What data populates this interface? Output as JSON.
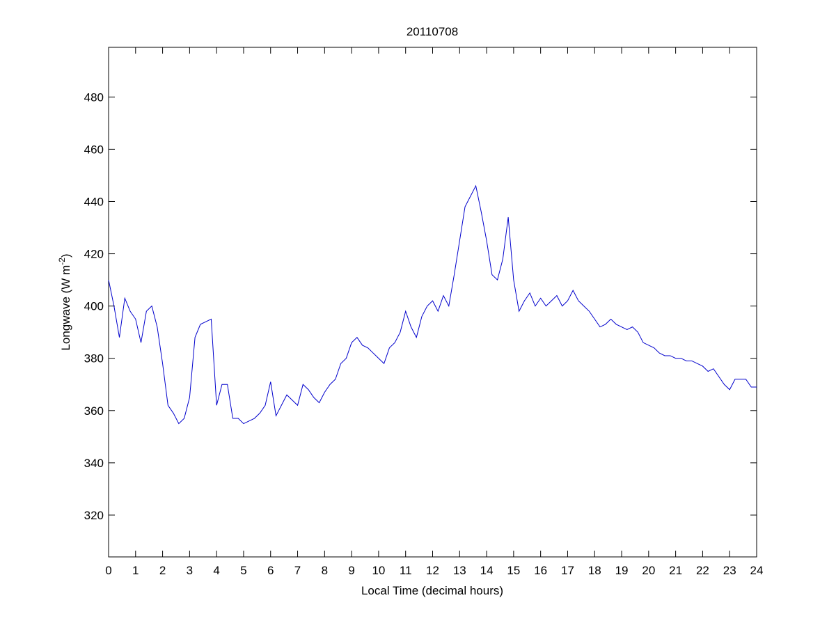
{
  "chart_data": {
    "type": "line",
    "title": "20110708",
    "xlabel": "Local Time (decimal hours)",
    "ylabel": "Longwave (W m",
    "ylabel_superscript": "-2",
    "ylabel_end": ")",
    "x": [
      0,
      0.2,
      0.4,
      0.6,
      0.8,
      1,
      1.2,
      1.4,
      1.6,
      1.8,
      2,
      2.2,
      2.4,
      2.6,
      2.8,
      3,
      3.2,
      3.4,
      3.6,
      3.8,
      4,
      4.2,
      4.4,
      4.6,
      4.8,
      5,
      5.2,
      5.4,
      5.6,
      5.8,
      6,
      6.2,
      6.4,
      6.6,
      6.8,
      7,
      7.2,
      7.4,
      7.6,
      7.8,
      8,
      8.2,
      8.4,
      8.6,
      8.8,
      9,
      9.2,
      9.4,
      9.6,
      9.8,
      10,
      10.2,
      10.4,
      10.6,
      10.8,
      11,
      11.2,
      11.4,
      11.6,
      11.8,
      12,
      12.2,
      12.4,
      12.6,
      12.8,
      13,
      13.2,
      13.4,
      13.6,
      13.8,
      14,
      14.2,
      14.4,
      14.6,
      14.8,
      15,
      15.2,
      15.4,
      15.6,
      15.8,
      16,
      16.2,
      16.4,
      16.6,
      16.8,
      17,
      17.2,
      17.4,
      17.6,
      17.8,
      18,
      18.2,
      18.4,
      18.6,
      18.8,
      19,
      19.2,
      19.4,
      19.6,
      19.8,
      20,
      20.2,
      20.4,
      20.6,
      20.8,
      21,
      21.2,
      21.4,
      21.6,
      21.8,
      22,
      22.2,
      22.4,
      22.6,
      22.8,
      23,
      23.2,
      23.4,
      23.6,
      23.8,
      24
    ],
    "series": [
      {
        "color": "#0000cc",
        "values": [
          410,
          400,
          388,
          403,
          398,
          395,
          386,
          398,
          400,
          392,
          378,
          362,
          359,
          355,
          357,
          365,
          388,
          393,
          394,
          395,
          362,
          370,
          370,
          357,
          357,
          355,
          356,
          357,
          359,
          362,
          371,
          358,
          362,
          366,
          364,
          362,
          370,
          368,
          365,
          363,
          367,
          370,
          372,
          378,
          380,
          386,
          388,
          385,
          384,
          382,
          380,
          378,
          384,
          386,
          390,
          398,
          392,
          388,
          396,
          400,
          402,
          398,
          404,
          400,
          412,
          425,
          438,
          442,
          446,
          436,
          425,
          412,
          410,
          418,
          434,
          410,
          398,
          402,
          405,
          400,
          403,
          400,
          402,
          404,
          400,
          402,
          406,
          402,
          400,
          398,
          395,
          392,
          393,
          395,
          393,
          392,
          391,
          392,
          390,
          386,
          385,
          384,
          382,
          381,
          381,
          380,
          380,
          379,
          379,
          378,
          377,
          375,
          376,
          373,
          370,
          368,
          372,
          372,
          372,
          369,
          369
        ]
      }
    ],
    "xlim": [
      0,
      24
    ],
    "xticks": [
      0,
      1,
      2,
      3,
      4,
      5,
      6,
      7,
      8,
      9,
      10,
      11,
      12,
      13,
      14,
      15,
      16,
      17,
      18,
      19,
      20,
      21,
      22,
      23,
      24
    ],
    "ylim": [
      304,
      499
    ],
    "yticks": [
      320,
      340,
      360,
      380,
      400,
      420,
      440,
      460,
      480
    ],
    "grid": false
  }
}
